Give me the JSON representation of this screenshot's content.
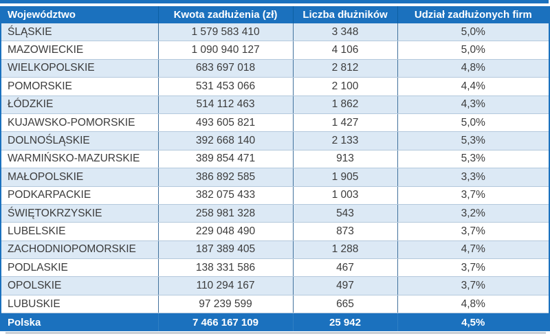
{
  "colors": {
    "header_bg": "#1B71BE",
    "band_row_bg": "#DCE9F5",
    "row_border": "#B3C8DC",
    "column_border": "#41719C",
    "body_text": "#3B3B3B",
    "header_text": "#FFFFFF"
  },
  "chart_data": {
    "type": "table",
    "columns": [
      "Województwo",
      "Kwota zadłużenia (zł)",
      "Liczba dłużników",
      "Udział zadłużonych firm"
    ],
    "rows": [
      [
        "ŚLĄSKIE",
        "1 579 583 410",
        "3 348",
        "5,0%"
      ],
      [
        "MAZOWIECKIE",
        "1 090 940 127",
        "4 106",
        "5,0%"
      ],
      [
        "WIELKOPOLSKIE",
        "683 697 018",
        "2 812",
        "4,8%"
      ],
      [
        "POMORSKIE",
        "531 453 066",
        "2 100",
        "4,4%"
      ],
      [
        "ŁÓDZKIE",
        "514 112 463",
        "1 862",
        "4,3%"
      ],
      [
        "KUJAWSKO-POMORSKIE",
        "493 605 821",
        "1 427",
        "5,0%"
      ],
      [
        "DOLNOŚLĄSKIE",
        "392 668 140",
        "2 133",
        "5,3%"
      ],
      [
        "WARMIŃSKO-MAZURSKIE",
        "389 854 471",
        "913",
        "5,3%"
      ],
      [
        "MAŁOPOLSKIE",
        "386 892 585",
        "1 905",
        "3,3%"
      ],
      [
        "PODKARPACKIE",
        "382 075 433",
        "1 003",
        "3,7%"
      ],
      [
        "ŚWIĘTOKRZYSKIE",
        "258 981 328",
        "543",
        "3,2%"
      ],
      [
        "LUBELSKIE",
        "229 048 490",
        "873",
        "3,7%"
      ],
      [
        "ZACHODNIOPOMORSKIE",
        "187 389 405",
        "1 288",
        "4,7%"
      ],
      [
        "PODLASKIE",
        "138 331 586",
        "467",
        "3,7%"
      ],
      [
        "OPOLSKIE",
        "110 294 167",
        "497",
        "3,7%"
      ],
      [
        "LUBUSKIE",
        "97 239 599",
        "665",
        "4,8%"
      ]
    ],
    "total": [
      "Polska",
      "7 466 167 109",
      "25 942",
      "4,5%"
    ],
    "layout": {
      "banding": "odd rows light blue, even rows white",
      "alignment": [
        "left",
        "center",
        "center",
        "center"
      ]
    }
  }
}
